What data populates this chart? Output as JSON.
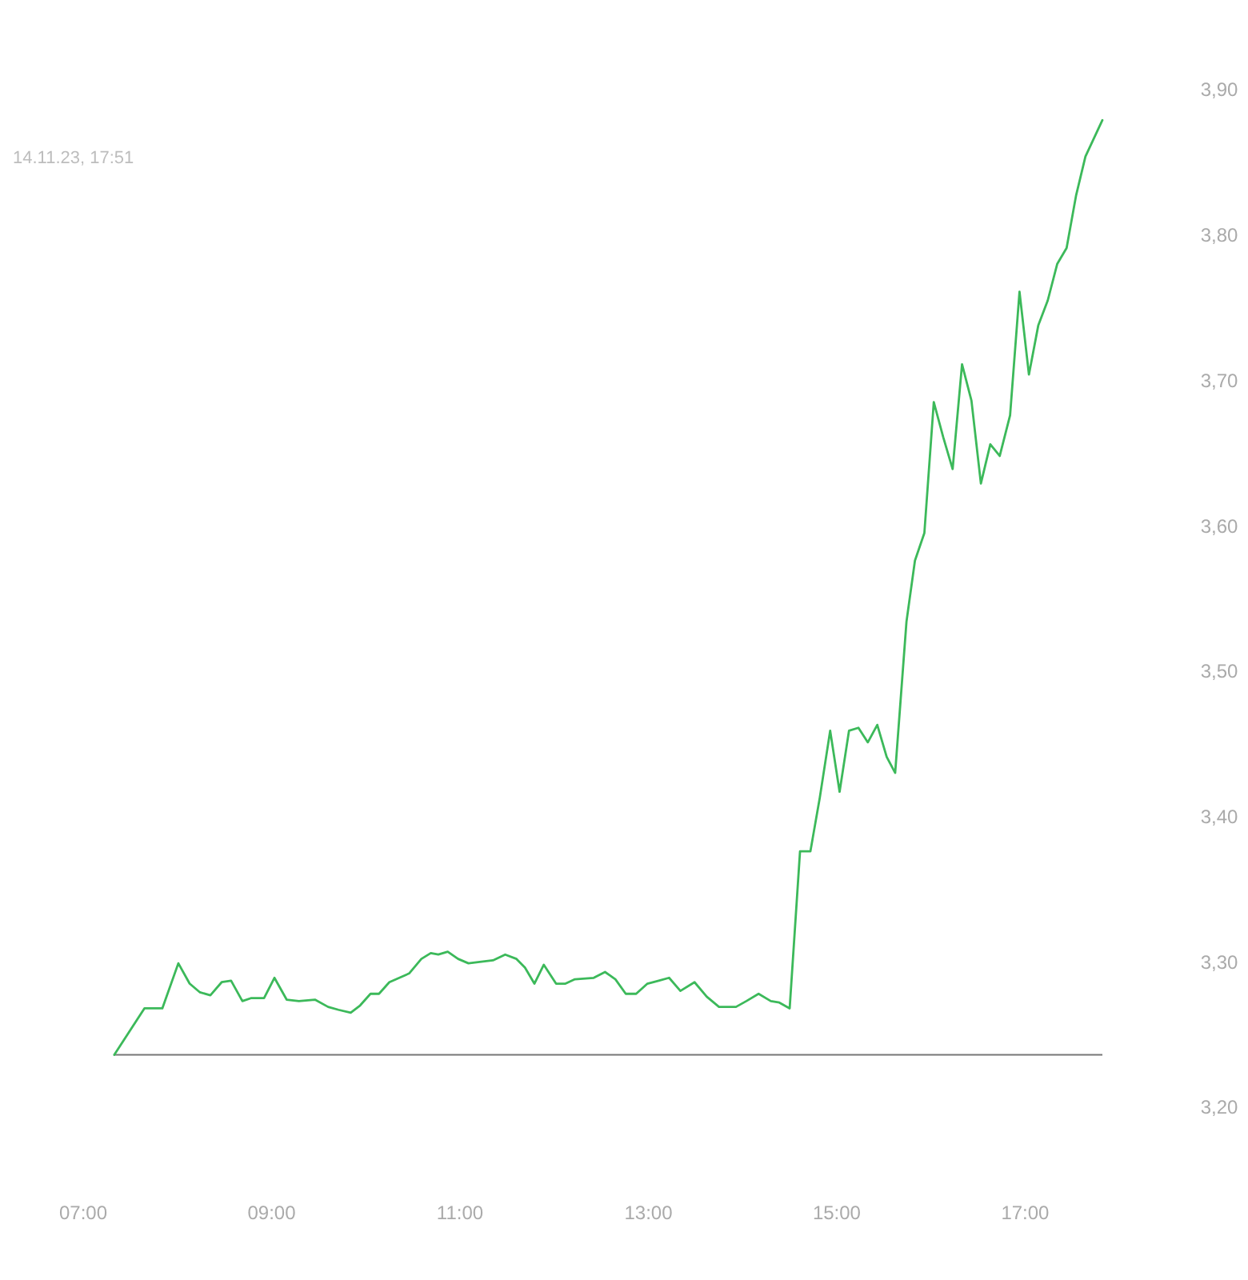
{
  "chart_data": {
    "type": "line",
    "subtitle": "14.11.23, 17:51",
    "x": [
      7.33,
      7.65,
      7.84,
      8.01,
      8.13,
      8.24,
      8.35,
      8.47,
      8.57,
      8.69,
      8.78,
      8.92,
      9.03,
      9.16,
      9.29,
      9.46,
      9.6,
      9.71,
      9.84,
      9.94,
      10.05,
      10.14,
      10.25,
      10.46,
      10.59,
      10.69,
      10.77,
      10.87,
      10.98,
      11.09,
      11.21,
      11.35,
      11.48,
      11.6,
      11.69,
      11.79,
      11.89,
      12.02,
      12.12,
      12.22,
      12.42,
      12.54,
      12.65,
      12.76,
      12.87,
      12.99,
      13.11,
      13.22,
      13.34,
      13.49,
      13.62,
      13.75,
      13.93,
      14.04,
      14.17,
      14.3,
      14.39,
      14.5,
      14.61,
      14.72,
      14.82,
      14.93,
      15.03,
      15.13,
      15.23,
      15.33,
      15.43,
      15.53,
      15.62,
      15.74,
      15.83,
      15.93,
      16.03,
      16.13,
      16.23,
      16.33,
      16.43,
      16.53,
      16.63,
      16.73,
      16.84,
      16.94,
      17.04,
      17.14,
      17.24,
      17.34,
      17.44,
      17.54,
      17.64,
      17.82
    ],
    "series": [
      {
        "color": "#3cb95a",
        "values": [
          3.236,
          3.268,
          3.268,
          3.299,
          3.285,
          3.279,
          3.277,
          3.286,
          3.287,
          3.273,
          3.275,
          3.275,
          3.289,
          3.274,
          3.273,
          3.274,
          3.269,
          3.267,
          3.265,
          3.27,
          3.278,
          3.278,
          3.286,
          3.292,
          3.302,
          3.306,
          3.305,
          3.307,
          3.302,
          3.299,
          3.3,
          3.301,
          3.305,
          3.302,
          3.296,
          3.285,
          3.298,
          3.285,
          3.285,
          3.288,
          3.289,
          3.293,
          3.288,
          3.278,
          3.278,
          3.285,
          3.287,
          3.289,
          3.28,
          3.286,
          3.276,
          3.269,
          3.269,
          3.273,
          3.278,
          3.273,
          3.272,
          3.268,
          3.376,
          3.376,
          3.413,
          3.459,
          3.417,
          3.459,
          3.461,
          3.451,
          3.463,
          3.441,
          3.43,
          3.534,
          3.576,
          3.595,
          3.685,
          3.661,
          3.639,
          3.711,
          3.686,
          3.629,
          3.656,
          3.648,
          3.676,
          3.761,
          3.704,
          3.738,
          3.755,
          3.78,
          3.791,
          3.827,
          3.854,
          3.879
        ]
      }
    ],
    "xlim": [
      7,
      17.82
    ],
    "ylim": [
      3.2,
      3.9
    ],
    "xticks": [
      {
        "value": 7,
        "label": "07:00"
      },
      {
        "value": 9,
        "label": "09:00"
      },
      {
        "value": 11,
        "label": "11:00"
      },
      {
        "value": 13,
        "label": "13:00"
      },
      {
        "value": 15,
        "label": "15:00"
      },
      {
        "value": 17,
        "label": "17:00"
      }
    ],
    "yticks": [
      {
        "value": 3.2,
        "label": "3,20"
      },
      {
        "value": 3.3,
        "label": "3,30"
      },
      {
        "value": 3.4,
        "label": "3,40"
      },
      {
        "value": 3.5,
        "label": "3,50"
      },
      {
        "value": 3.6,
        "label": "3,60"
      },
      {
        "value": 3.7,
        "label": "3,70"
      },
      {
        "value": 3.8,
        "label": "3,80"
      },
      {
        "value": 3.9,
        "label": "3,90"
      }
    ],
    "ref_lines": [
      {
        "axis": "y",
        "value": 3.236,
        "color": "#777777"
      }
    ],
    "grid": false,
    "marker": "none",
    "line_style": "solid"
  }
}
